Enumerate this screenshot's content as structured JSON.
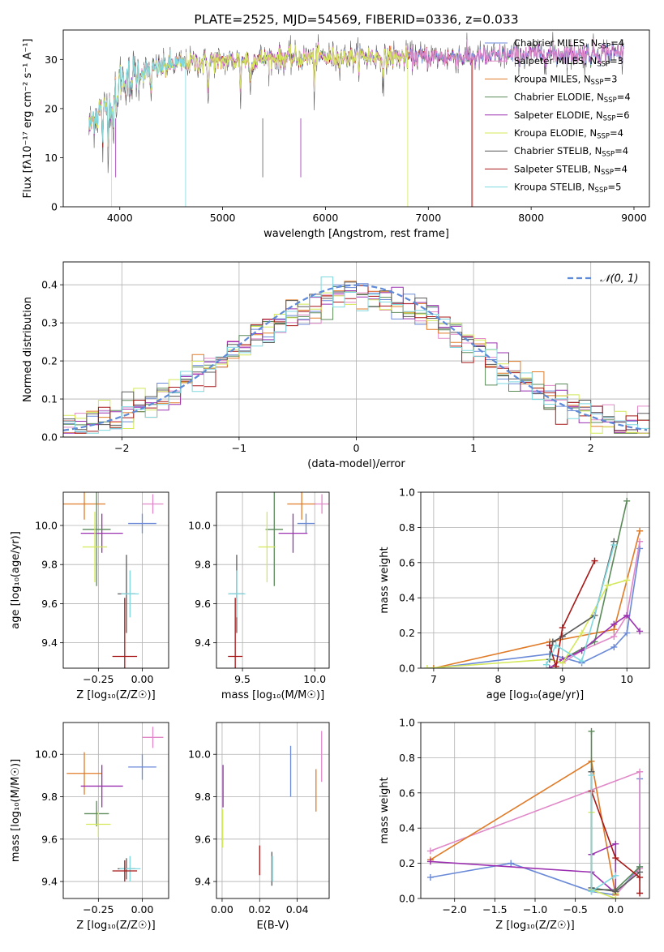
{
  "chart_data": [
    {
      "id": "spectrum",
      "type": "line",
      "title": "PLATE=2525, MJD=54569, FIBERID=0336, z=0.033",
      "xlabel": "wavelength [Angstrom, rest frame]",
      "ylabel": "Flux [fλ10⁻¹⁷ erg cm⁻² s⁻¹ A⁻¹]",
      "xlim": [
        3450,
        9150
      ],
      "ylim": [
        0,
        36
      ],
      "xticks": [
        4000,
        5000,
        6000,
        7000,
        8000,
        9000
      ],
      "yticks": [
        0,
        10,
        20,
        30
      ],
      "legend_position": "top-right",
      "legend": [
        {
          "label": "Chabrier MILES, N",
          "sub": "SSP",
          "suffix": "=4",
          "color": "#6a8ad8"
        },
        {
          "label": "Salpeter MILES, N",
          "sub": "SSP",
          "suffix": "=3",
          "color": "#e088c8"
        },
        {
          "label": "Kroupa MILES, N",
          "sub": "SSP",
          "suffix": "=3",
          "color": "#e07b28"
        },
        {
          "label": "Chabrier ELODIE, N",
          "sub": "SSP",
          "suffix": "=4",
          "color": "#5a8a58"
        },
        {
          "label": "Salpeter ELODIE, N",
          "sub": "SSP",
          "suffix": "=6",
          "color": "#9b30b0"
        },
        {
          "label": "Kroupa ELODIE, N",
          "sub": "SSP",
          "suffix": "=4",
          "color": "#d4e85a"
        },
        {
          "label": "Chabrier STELIB, N",
          "sub": "SSP",
          "suffix": "=4",
          "color": "#5a5a5a"
        },
        {
          "label": "Salpeter STELIB, N",
          "sub": "SSP",
          "suffix": "=4",
          "color": "#a81818"
        },
        {
          "label": "Kroupa STELIB, N",
          "sub": "SSP",
          "suffix": "=5",
          "color": "#7fd8e0"
        }
      ],
      "spectrum_anchors": {
        "x": [
          3700,
          3760,
          3850,
          3950,
          4000,
          4150,
          4300,
          4500,
          4800,
          5200,
          5600,
          6000,
          6500,
          7000,
          7500,
          8000,
          8500,
          8900
        ],
        "y": [
          16,
          19,
          20,
          22,
          26,
          27,
          28,
          29,
          29.5,
          30,
          30.3,
          30.5,
          30.5,
          30.5,
          30.5,
          31,
          31.2,
          31.5
        ]
      },
      "spectrum_cutoffs": [
        {
          "color": "#a81818",
          "start": 3700,
          "end": 7430
        },
        {
          "color": "#e07b28",
          "start": 3700,
          "end": 7420
        },
        {
          "color": "#d4e85a",
          "start": 3740,
          "end": 6800
        },
        {
          "color": "#7fd8e0",
          "start": 3700,
          "end": 4640
        }
      ]
    },
    {
      "id": "residuals",
      "type": "histogram",
      "xlabel": "(data-model)/error",
      "ylabel": "Normed distribution",
      "xlim": [
        -2.5,
        2.5
      ],
      "ylim": [
        0,
        0.46
      ],
      "xticks": [
        -2,
        -1,
        0,
        1,
        2
      ],
      "yticks": [
        0.0,
        0.1,
        0.2,
        0.3,
        0.4
      ],
      "legend_position": "top-right",
      "gaussian_label": "𝒩(0, 1)",
      "gaussian_color": "#5e8ad8",
      "bin_width": 0.1
    },
    {
      "id": "age_vs_z",
      "type": "errorbar",
      "xlabel": "Z [log₁₀(Z/Z☉)]",
      "ylabel": "age  [log₁₀(age/yr)]",
      "xlim": [
        -0.45,
        0.15
      ],
      "ylim": [
        9.27,
        10.17
      ],
      "xticks": [
        -0.25,
        0.0
      ],
      "yticks": [
        9.4,
        9.6,
        9.8,
        10.0
      ],
      "points": [
        {
          "color": "#e07b28",
          "x": -0.33,
          "xerr": 0.12,
          "y": 10.11,
          "yerr": 0.08
        },
        {
          "color": "#e088c8",
          "x": 0.06,
          "xerr": 0.06,
          "y": 10.11,
          "yerr": 0.05
        },
        {
          "color": "#6a8ad8",
          "x": 0.0,
          "xerr": 0.08,
          "y": 10.01,
          "yerr": 0.05
        },
        {
          "color": "#9b30b0",
          "x": -0.23,
          "xerr": 0.12,
          "y": 9.96,
          "yerr": 0.1
        },
        {
          "color": "#5a8a58",
          "x": -0.26,
          "xerr": 0.08,
          "y": 9.98,
          "yerr": 0.29
        },
        {
          "color": "#d4e85a",
          "x": -0.27,
          "xerr": 0.07,
          "y": 9.89,
          "yerr": 0.18
        },
        {
          "color": "#5a5a5a",
          "x": -0.09,
          "xerr": 0.05,
          "y": 9.65,
          "yerr": 0.2
        },
        {
          "color": "#7fd8e0",
          "x": -0.07,
          "xerr": 0.05,
          "y": 9.65,
          "yerr": 0.12
        },
        {
          "color": "#a81818",
          "x": -0.1,
          "xerr": 0.07,
          "y": 9.33,
          "yerr": 0.3
        }
      ]
    },
    {
      "id": "age_vs_mass",
      "type": "errorbar",
      "xlabel": "mass [log₁₀(M/M☉)]",
      "ylabel": "",
      "xlim": [
        9.32,
        10.1
      ],
      "ylim": [
        9.27,
        10.17
      ],
      "xticks": [
        9.5,
        10.0
      ],
      "yticks": [
        9.4,
        9.6,
        9.8,
        10.0
      ],
      "points": [
        {
          "color": "#e07b28",
          "x": 9.91,
          "xerr": 0.1,
          "y": 10.11,
          "yerr": 0.08
        },
        {
          "color": "#e088c8",
          "x": 10.05,
          "xerr": 0.05,
          "y": 10.11,
          "yerr": 0.05
        },
        {
          "color": "#6a8ad8",
          "x": 9.94,
          "xerr": 0.06,
          "y": 10.01,
          "yerr": 0.05
        },
        {
          "color": "#9b30b0",
          "x": 9.85,
          "xerr": 0.1,
          "y": 9.96,
          "yerr": 0.1
        },
        {
          "color": "#5a8a58",
          "x": 9.72,
          "xerr": 0.06,
          "y": 9.98,
          "yerr": 0.29
        },
        {
          "color": "#d4e85a",
          "x": 9.67,
          "xerr": 0.06,
          "y": 9.89,
          "yerr": 0.18
        },
        {
          "color": "#5a5a5a",
          "x": 9.46,
          "xerr": 0.05,
          "y": 9.65,
          "yerr": 0.2
        },
        {
          "color": "#7fd8e0",
          "x": 9.46,
          "xerr": 0.06,
          "y": 9.65,
          "yerr": 0.12
        },
        {
          "color": "#a81818",
          "x": 9.45,
          "xerr": 0.05,
          "y": 9.33,
          "yerr": 0.3
        }
      ]
    },
    {
      "id": "massweight_vs_age",
      "type": "line",
      "xlabel": "age  [log₁₀(age/yr)]",
      "ylabel": "mass weight",
      "xlim": [
        6.8,
        10.35
      ],
      "ylim": [
        0,
        1
      ],
      "xticks": [
        7,
        8,
        9,
        10
      ],
      "yticks": [
        0.0,
        0.2,
        0.4,
        0.6,
        0.8,
        1.0
      ],
      "series": [
        {
          "color": "#6a8ad8",
          "x": [
            7.0,
            8.8,
            9.3,
            9.8,
            10.0,
            10.2
          ],
          "y": [
            0.0,
            0.08,
            0.03,
            0.12,
            0.2,
            0.68
          ]
        },
        {
          "color": "#e088c8",
          "x": [
            9.0,
            9.3,
            9.8,
            10.0,
            10.2
          ],
          "y": [
            0.03,
            0.1,
            0.18,
            0.3,
            0.72
          ]
        },
        {
          "color": "#e07b28",
          "x": [
            7.0,
            8.8,
            9.8,
            10.2
          ],
          "y": [
            0.0,
            0.15,
            0.22,
            0.78
          ]
        },
        {
          "color": "#5a8a58",
          "x": [
            8.8,
            9.0,
            9.5,
            10.0
          ],
          "y": [
            0.0,
            0.05,
            0.15,
            0.95
          ]
        },
        {
          "color": "#9b30b0",
          "x": [
            8.8,
            9.0,
            9.3,
            9.8,
            10.0,
            10.2
          ],
          "y": [
            0.0,
            0.05,
            0.1,
            0.25,
            0.3,
            0.21
          ]
        },
        {
          "color": "#d4e85a",
          "x": [
            6.9,
            8.8,
            9.0,
            9.3,
            9.7,
            10.0
          ],
          "y": [
            0.0,
            0.05,
            0.03,
            0.2,
            0.47,
            0.5
          ]
        },
        {
          "color": "#5a5a5a",
          "x": [
            8.8,
            8.85,
            9.0,
            9.5,
            9.8
          ],
          "y": [
            0.05,
            0.15,
            0.18,
            0.3,
            0.72
          ]
        },
        {
          "color": "#a81818",
          "x": [
            8.8,
            8.9,
            9.0,
            9.5
          ],
          "y": [
            0.13,
            0.01,
            0.23,
            0.61
          ]
        },
        {
          "color": "#7fd8e0",
          "x": [
            8.75,
            8.9,
            9.3,
            9.8
          ],
          "y": [
            0.02,
            0.13,
            0.04,
            0.7
          ]
        }
      ]
    },
    {
      "id": "mass_vs_z",
      "type": "errorbar",
      "xlabel": "Z [log₁₀(Z/Z☉)]",
      "ylabel": "mass [log₁₀(M/M☉)]",
      "xlim": [
        -0.45,
        0.15
      ],
      "ylim": [
        9.32,
        10.15
      ],
      "xticks": [
        -0.25,
        0.0
      ],
      "yticks": [
        9.4,
        9.6,
        9.8,
        10.0
      ],
      "points": [
        {
          "color": "#e088c8",
          "x": 0.06,
          "xerr": 0.06,
          "y": 10.08,
          "yerr": 0.05
        },
        {
          "color": "#6a8ad8",
          "x": 0.0,
          "xerr": 0.08,
          "y": 9.94,
          "yerr": 0.06
        },
        {
          "color": "#e07b28",
          "x": -0.33,
          "xerr": 0.1,
          "y": 9.91,
          "yerr": 0.1
        },
        {
          "color": "#9b30b0",
          "x": -0.23,
          "xerr": 0.12,
          "y": 9.85,
          "yerr": 0.1
        },
        {
          "color": "#5a8a58",
          "x": -0.26,
          "xerr": 0.07,
          "y": 9.72,
          "yerr": 0.06
        },
        {
          "color": "#d4e85a",
          "x": -0.25,
          "xerr": 0.07,
          "y": 9.67,
          "yerr": 0.06
        },
        {
          "color": "#5a5a5a",
          "x": -0.09,
          "xerr": 0.05,
          "y": 9.46,
          "yerr": 0.05
        },
        {
          "color": "#7fd8e0",
          "x": -0.07,
          "xerr": 0.06,
          "y": 9.46,
          "yerr": 0.06
        },
        {
          "color": "#a81818",
          "x": -0.1,
          "xerr": 0.07,
          "y": 9.45,
          "yerr": 0.05
        }
      ]
    },
    {
      "id": "mass_vs_ebv",
      "type": "errorbar",
      "xlabel": "E(B-V)",
      "ylabel": "",
      "xlim": [
        -0.003,
        0.057
      ],
      "ylim": [
        9.32,
        10.15
      ],
      "xticks": [
        0.0,
        0.02,
        0.04
      ],
      "xtick_labels": [
        "0.00",
        "0.02",
        "0.04"
      ],
      "yticks": [
        9.4,
        9.6,
        9.8,
        10.0
      ],
      "points": [
        {
          "color": "#e088c8",
          "x": 0.053,
          "xerr": 0,
          "y": 9.99,
          "yerr": 0.12
        },
        {
          "color": "#6a8ad8",
          "x": 0.0365,
          "xerr": 0,
          "y": 9.92,
          "yerr": 0.12
        },
        {
          "color": "#e07b28",
          "x": 0.05,
          "xerr": 0,
          "y": 9.83,
          "yerr": 0.1
        },
        {
          "color": "#9b30b0",
          "x": 0.0005,
          "xerr": 0,
          "y": 9.85,
          "yerr": 0.1
        },
        {
          "color": "#d4e85a",
          "x": 0.0003,
          "xerr": 0,
          "y": 9.65,
          "yerr": 0.09
        },
        {
          "color": "#5a5a5a",
          "x": 0.0265,
          "xerr": 0,
          "y": 9.46,
          "yerr": 0.08
        },
        {
          "color": "#7fd8e0",
          "x": 0.0268,
          "xerr": 0,
          "y": 9.46,
          "yerr": 0.06
        },
        {
          "color": "#a81818",
          "x": 0.02,
          "xerr": 0,
          "y": 9.5,
          "yerr": 0.07
        }
      ]
    },
    {
      "id": "massweight_vs_z",
      "type": "line",
      "xlabel": "Z [log₁₀(Z/Z☉)]",
      "ylabel": "mass weight",
      "xlim": [
        -2.42,
        0.42
      ],
      "ylim": [
        0,
        1
      ],
      "xticks": [
        -2.0,
        -1.5,
        -1.0,
        -0.5,
        0.0
      ],
      "yticks": [
        0.0,
        0.2,
        0.4,
        0.6,
        0.8,
        1.0
      ],
      "series": [
        {
          "color": "#6a8ad8",
          "x": [
            -2.3,
            -1.3,
            -0.3,
            0.0,
            0.3,
            0.3
          ],
          "y": [
            0.12,
            0.2,
            0.04,
            0.02,
            0.18,
            0.68
          ]
        },
        {
          "color": "#e088c8",
          "x": [
            -2.3,
            0.3,
            0.3,
            0.0
          ],
          "y": [
            0.27,
            0.72,
            0.17,
            0.02
          ]
        },
        {
          "color": "#e07b28",
          "x": [
            -2.3,
            -0.3,
            0.0
          ],
          "y": [
            0.22,
            0.78,
            0.02
          ]
        },
        {
          "color": "#5a8a58",
          "x": [
            -0.3,
            -0.3,
            0.0,
            0.3
          ],
          "y": [
            0.95,
            0.05,
            0.05,
            0.18
          ]
        },
        {
          "color": "#9b30b0",
          "x": [
            -2.3,
            -0.3,
            0.0,
            0.0,
            -0.3
          ],
          "y": [
            0.21,
            0.15,
            0.03,
            0.31,
            0.25
          ]
        },
        {
          "color": "#d4e85a",
          "x": [
            -0.3,
            -0.3,
            0.0,
            0.0
          ],
          "y": [
            0.49,
            0.05,
            0.0,
            0.03
          ]
        },
        {
          "color": "#5a5a5a",
          "x": [
            -0.3,
            -0.3,
            0.0,
            0.3
          ],
          "y": [
            0.72,
            0.06,
            0.04,
            0.15
          ]
        },
        {
          "color": "#a81818",
          "x": [
            -0.3,
            0.0,
            0.3,
            0.3
          ],
          "y": [
            0.61,
            0.23,
            0.12,
            0.03
          ]
        },
        {
          "color": "#7fd8e0",
          "x": [
            -0.3,
            -0.3,
            0.0
          ],
          "y": [
            0.7,
            0.04,
            0.13
          ]
        }
      ]
    }
  ]
}
